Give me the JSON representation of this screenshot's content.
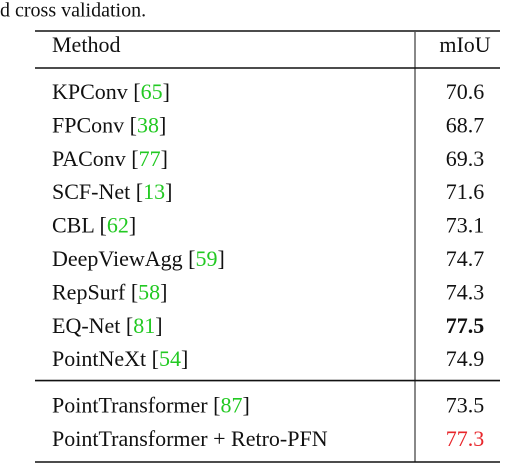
{
  "caption": "d cross validation.",
  "table": {
    "header": [
      "Method",
      "mIoU"
    ],
    "cite_brackets": [
      "[",
      "]"
    ],
    "groups": [
      {
        "rows": [
          {
            "method": "KPConv",
            "cite": "65",
            "value": "70.6"
          },
          {
            "method": "FPConv",
            "cite": "38",
            "value": "68.7"
          },
          {
            "method": "PAConv",
            "cite": "77",
            "value": "69.3"
          },
          {
            "method": "SCF-Net",
            "cite": "13",
            "value": "71.6"
          },
          {
            "method": "CBL",
            "cite": "62",
            "value": "73.1"
          },
          {
            "method": "DeepViewAgg",
            "cite": "59",
            "value": "74.7"
          },
          {
            "method": "RepSurf",
            "cite": "58",
            "value": "74.3"
          },
          {
            "method": "EQ-Net",
            "cite": "81",
            "value": "77.5",
            "bold": true
          },
          {
            "method": "PointNeXt",
            "cite": "54",
            "value": "74.9"
          }
        ]
      },
      {
        "rows": [
          {
            "method": "PointTransformer",
            "cite": "87",
            "value": "73.5"
          },
          {
            "method": "PointTransformer + Retro-PFN",
            "value": "77.3",
            "color": "#e8262b"
          }
        ]
      }
    ],
    "cite_color": "#22c922"
  }
}
